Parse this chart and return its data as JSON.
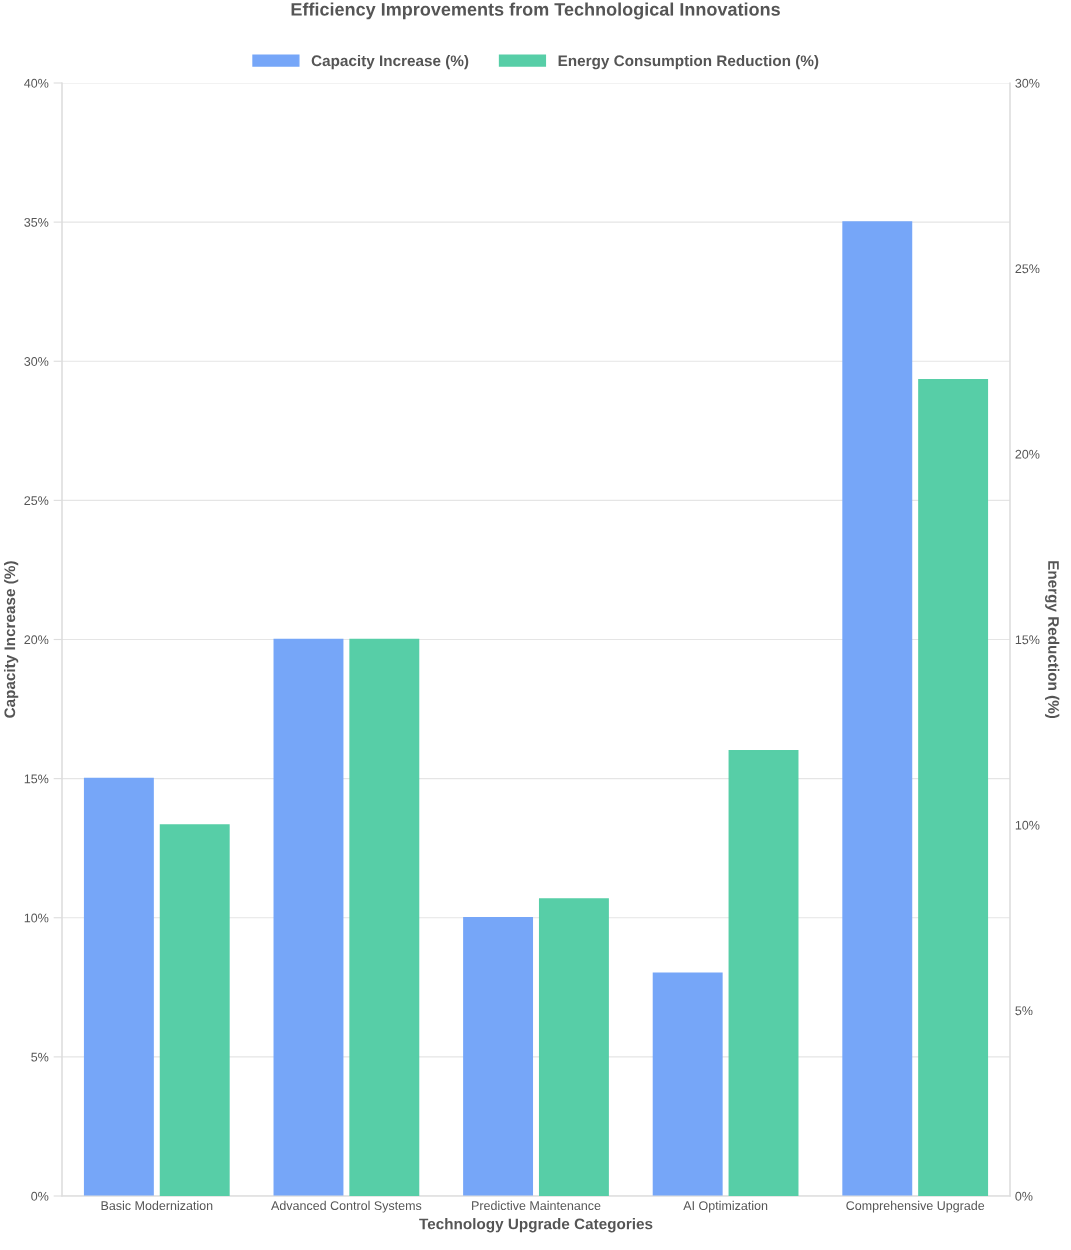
{
  "chart_data": {
    "type": "bar",
    "title": "Efficiency Improvements from Technological Innovations",
    "xlabel": "Technology Upgrade Categories",
    "ylabel": "Capacity Increase (%)",
    "y2label": "Energy Reduction (%)",
    "categories": [
      "Basic Modernization",
      "Advanced Control Systems",
      "Predictive Maintenance",
      "AI Optimization",
      "Comprehensive Upgrade"
    ],
    "series": [
      {
        "name": "Capacity Increase (%)",
        "color": "#76a6f8",
        "values": [
          15,
          20,
          10,
          8,
          35
        ]
      },
      {
        "name": "Energy Consumption Reduction (%)",
        "color": "#57cea7",
        "values": [
          10,
          15,
          8,
          12,
          22
        ],
        "axis": "y2"
      }
    ],
    "ylim": [
      0,
      40
    ],
    "yticks": [
      {
        "value": 0,
        "label": "0%"
      },
      {
        "value": 5,
        "label": "5%"
      },
      {
        "value": 10,
        "label": "10%"
      },
      {
        "value": 15,
        "label": "15%"
      },
      {
        "value": 20,
        "label": "20%"
      },
      {
        "value": 25,
        "label": "25%"
      },
      {
        "value": 30,
        "label": "30%"
      },
      {
        "value": 35,
        "label": "35%"
      },
      {
        "value": 40,
        "label": "40%"
      }
    ],
    "y2lim": [
      0,
      30
    ],
    "y2ticks": [
      {
        "value": 0,
        "label": "0%"
      },
      {
        "value": 5,
        "label": "5%"
      },
      {
        "value": 10,
        "label": "10%"
      },
      {
        "value": 15,
        "label": "15%"
      },
      {
        "value": 20,
        "label": "20%"
      },
      {
        "value": 25,
        "label": "25%"
      },
      {
        "value": 30,
        "label": "30%"
      }
    ],
    "grid": true,
    "legend": "top"
  }
}
